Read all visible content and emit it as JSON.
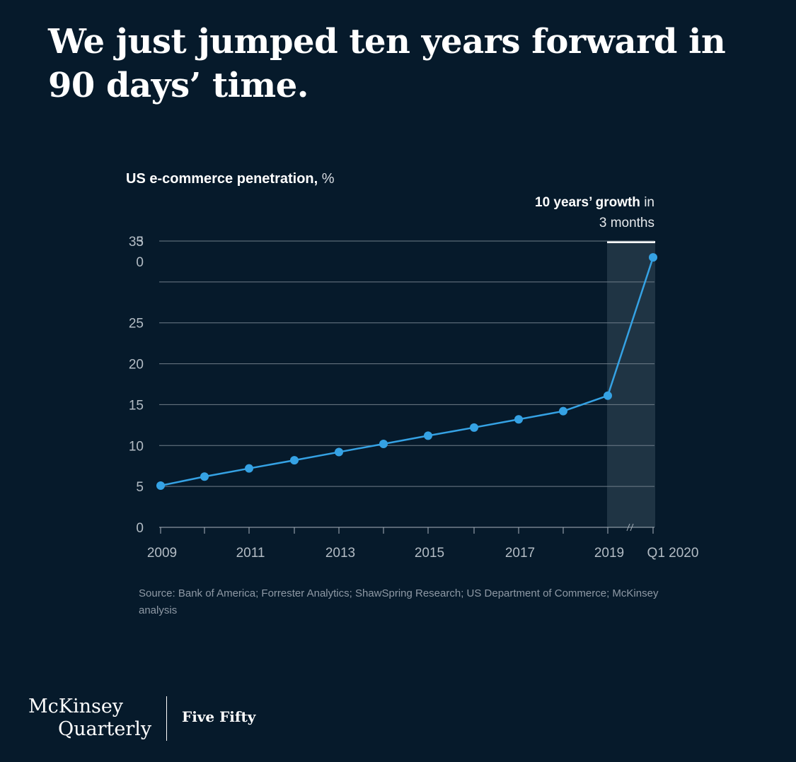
{
  "headline": "We just jumped ten years forward in 90 days’ time.",
  "chart_data": {
    "type": "line",
    "title": "US e-commerce penetration, %",
    "title_bold": "US e-commerce penetration,",
    "title_unit": "%",
    "x": [
      "2009",
      "2010",
      "2011",
      "2012",
      "2013",
      "2014",
      "2015",
      "2016",
      "2017",
      "2018",
      "2019",
      "Q1 2020"
    ],
    "x_tick_labels": [
      "2009",
      "2011",
      "2013",
      "2015",
      "2017",
      "2019",
      "Q1 2020"
    ],
    "series": [
      {
        "values": [
          5.1,
          6.2,
          7.2,
          8.2,
          9.2,
          10.2,
          11.2,
          12.2,
          13.2,
          14.2,
          16.1,
          33.0
        ]
      }
    ],
    "y_tick_labels": [
      "0",
      "5",
      "10",
      "15",
      "20",
      "25",
      "3\n0",
      "35"
    ],
    "ylim": [
      0,
      35
    ],
    "grid": true,
    "highlight_range": [
      "2019",
      "Q1 2020"
    ],
    "annotation_bold": "10 years’ growth",
    "annotation_normal_1": "in",
    "annotation_normal_2": "3 months",
    "line_color": "#35a2e4"
  },
  "source_text": "Source: Bank of America; Forrester Analytics; ShawSpring Research; US Department of Commerce; McKinsey analysis",
  "footer": {
    "brand_line1": "McKinsey",
    "brand_line2": "Quarterly",
    "series": "Five Fifty"
  }
}
